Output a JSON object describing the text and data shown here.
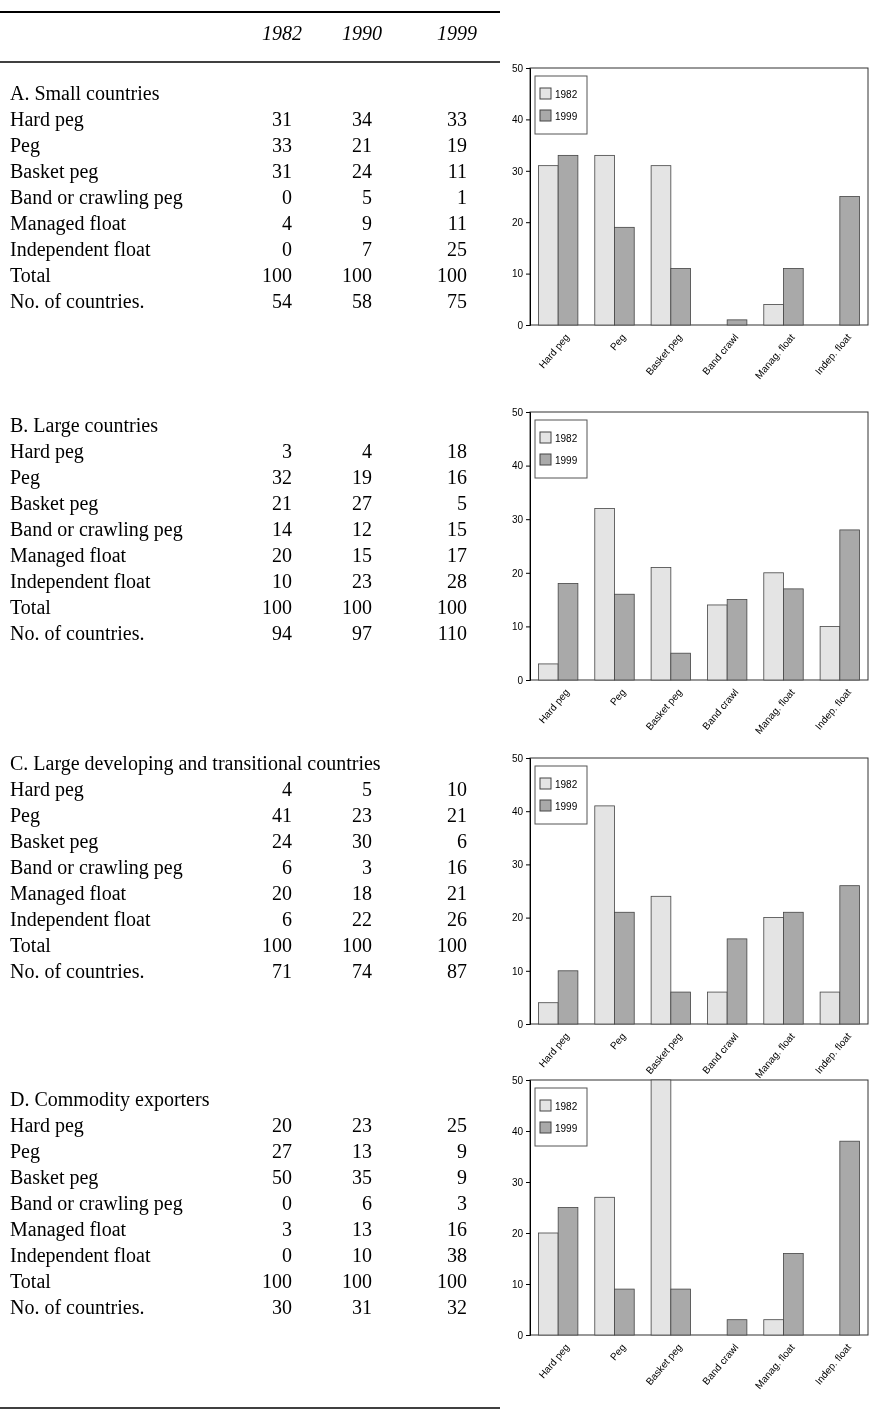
{
  "chart_data": [
    {
      "type": "other",
      "title": "A. Small countries",
      "categories": [
        "Hard peg",
        "Peg",
        "Basket peg",
        "Band or crawling peg",
        "Managed float",
        "Independent float",
        "Total",
        "No. of countries."
      ],
      "data_labels": true,
      "series": [
        {
          "name": "1982",
          "values": [
            31,
            33,
            31,
            0,
            4,
            0,
            100,
            54
          ]
        },
        {
          "name": "1990",
          "values": [
            34,
            21,
            24,
            5,
            9,
            7,
            100,
            58
          ]
        },
        {
          "name": "1999",
          "values": [
            33,
            19,
            11,
            1,
            11,
            25,
            100,
            75
          ]
        }
      ]
    },
    {
      "type": "bar",
      "categories": [
        "Hard peg",
        "Peg",
        "Basket peg",
        "Band crawl",
        "Manag. float",
        "Indep. float"
      ],
      "ylim": [
        0,
        50
      ],
      "yticks": [
        0,
        10,
        20,
        30,
        40,
        50
      ],
      "legend": "top left",
      "series": [
        {
          "name": "1982",
          "color": "#e4e4e4",
          "values": [
            31,
            33,
            31,
            0,
            4,
            0
          ]
        },
        {
          "name": "1999",
          "color": "#a9a9a9",
          "values": [
            33,
            19,
            11,
            1,
            11,
            25
          ]
        }
      ]
    },
    {
      "type": "other",
      "title": "B. Large countries",
      "categories": [
        "Hard peg",
        "Peg",
        "Basket peg",
        "Band or crawling peg",
        "Managed float",
        "Independent float",
        "Total",
        "No. of countries."
      ],
      "data_labels": true,
      "series": [
        {
          "values": [
            3,
            32,
            21,
            14,
            20,
            10,
            100,
            94
          ]
        },
        {
          "values": [
            4,
            19,
            27,
            12,
            15,
            23,
            100,
            97
          ]
        },
        {
          "values": [
            18,
            16,
            5,
            15,
            17,
            28,
            100,
            110
          ]
        }
      ]
    },
    {
      "type": "bar",
      "categories": [
        "Hard peg",
        "Peg",
        "Basket peg",
        "Band crawl",
        "Manag. float",
        "Indep. float"
      ],
      "ylim": [
        0,
        50
      ],
      "yticks": [
        0,
        10,
        20,
        30,
        40,
        50
      ],
      "legend": "top left",
      "series": [
        {
          "name": "1982",
          "color": "#e4e4e4",
          "values": [
            3,
            32,
            21,
            14,
            20,
            10
          ]
        },
        {
          "name": "1999",
          "color": "#a9a9a9",
          "values": [
            18,
            16,
            5,
            15,
            17,
            28
          ]
        }
      ]
    },
    {
      "type": "other",
      "title": "C. Large developing and transitional countries",
      "categories": [
        "Hard peg",
        "Peg",
        "Basket peg",
        "Band or crawling peg",
        "Managed float",
        "Independent float",
        "Total",
        "No. of countries."
      ],
      "data_labels": true,
      "series": [
        {
          "values": [
            4,
            41,
            24,
            6,
            20,
            6,
            100,
            71
          ]
        },
        {
          "values": [
            5,
            23,
            30,
            3,
            18,
            22,
            100,
            74
          ]
        },
        {
          "values": [
            10,
            21,
            6,
            16,
            21,
            26,
            100,
            87
          ]
        }
      ]
    },
    {
      "type": "bar",
      "categories": [
        "Hard peg",
        "Peg",
        "Basket peg",
        "Band crawl",
        "Manag. float",
        "Indep. float"
      ],
      "ylim": [
        0,
        50
      ],
      "yticks": [
        0,
        10,
        20,
        30,
        40,
        50
      ],
      "legend": "top left",
      "series": [
        {
          "name": "1982",
          "color": "#e4e4e4",
          "values": [
            4,
            41,
            24,
            6,
            20,
            6
          ]
        },
        {
          "name": "1999",
          "color": "#a9a9a9",
          "values": [
            10,
            21,
            6,
            16,
            21,
            26
          ]
        }
      ]
    },
    {
      "type": "other",
      "title": "D. Commodity exporters",
      "categories": [
        "Hard peg",
        "Peg",
        "Basket peg",
        "Band or crawling peg",
        "Managed float",
        "Independent float",
        "Total",
        "No. of countries."
      ],
      "data_labels": true,
      "series": [
        {
          "values": [
            20,
            27,
            50,
            0,
            3,
            0,
            100,
            30
          ]
        },
        {
          "values": [
            23,
            13,
            35,
            6,
            13,
            10,
            100,
            31
          ]
        },
        {
          "values": [
            25,
            9,
            9,
            3,
            16,
            38,
            100,
            32
          ]
        }
      ]
    },
    {
      "type": "bar",
      "categories": [
        "Hard peg",
        "Peg",
        "Basket peg",
        "Band crawl",
        "Manag. float",
        "Indep. float"
      ],
      "ylim": [
        0,
        50
      ],
      "yticks": [
        0,
        10,
        20,
        30,
        40,
        50
      ],
      "legend": "top left",
      "series": [
        {
          "name": "1982",
          "color": "#e4e4e4",
          "values": [
            20,
            27,
            50,
            0,
            3,
            0
          ]
        },
        {
          "name": "1999",
          "color": "#a9a9a9",
          "values": [
            25,
            9,
            9,
            3,
            16,
            38
          ]
        }
      ]
    }
  ]
}
